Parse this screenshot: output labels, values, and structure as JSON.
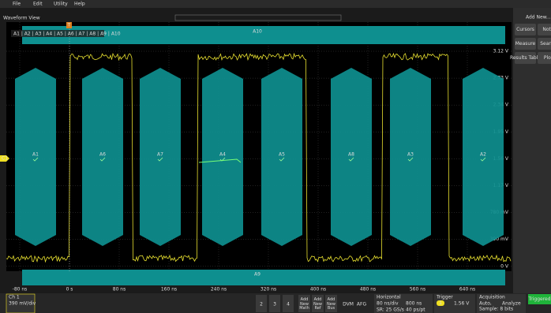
{
  "menu": [
    "File",
    "Edit",
    "Utility",
    "Help"
  ],
  "view_title": "Waveform View",
  "mask_tabs": "A1 | A2 | A3 | A4 | A5 | A6 | A7 | A8 | A9 | A10",
  "mask_segments": {
    "top": "A10",
    "bottom": "A9",
    "middle": [
      "A1",
      "A6",
      "A7",
      "A4",
      "A5",
      "A8",
      "A3",
      "A2"
    ]
  },
  "channel_marker": "C1",
  "trigger_marker": "T",
  "voltage_labels": [
    "3.12 V",
    "2.73 V",
    "2.34 V",
    "1.95 V",
    "1.56 V",
    "1.17 V",
    "780 mV",
    "390 mV",
    "0 V"
  ],
  "time_labels": [
    "-80 ns",
    "0 s",
    "80 ns",
    "160 ns",
    "240 ns",
    "320 ns",
    "400 ns",
    "480 ns",
    "560 ns",
    "640 ns"
  ],
  "side_panel": {
    "title": "Add New...",
    "buttons": [
      "Cursors",
      "Note",
      "Measure",
      "Search",
      "Results Table",
      "Plot"
    ]
  },
  "bottom_bar": {
    "channel": {
      "name": "Ch 1",
      "scale": "390 mV/div"
    },
    "channels": [
      "2",
      "3",
      "4"
    ],
    "add_new": [
      "Add New Math",
      "Add New Ref",
      "Add New Bus"
    ],
    "tools": [
      "DVM",
      "AFG"
    ],
    "horizontal": {
      "title": "Horizontal",
      "items": [
        "80 ns/div",
        "800 ns",
        "SR: 25 GS/s",
        "40 ps/pt"
      ]
    },
    "trigger": {
      "title": "Trigger",
      "source": "1",
      "level": "1.56 V"
    },
    "acquisition": {
      "title": "Acquisition",
      "items": [
        "Auto,",
        "Analyze",
        "Sample: 8 bits"
      ]
    },
    "status": "Triggered"
  }
}
